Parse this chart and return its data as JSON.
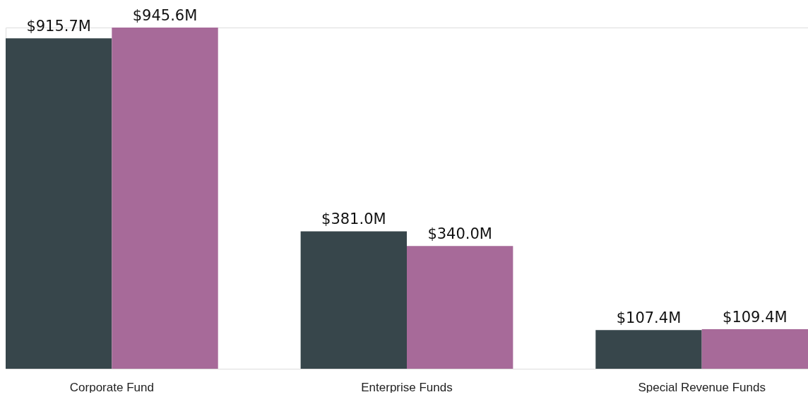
{
  "chart_data": {
    "type": "bar",
    "categories": [
      "Corporate Fund",
      "Enterprise Funds",
      "Special Revenue Funds"
    ],
    "series": [
      {
        "color": "#37464b",
        "values": [
          915.7,
          381.0,
          107.4
        ],
        "value_labels": [
          "$915.7M",
          "$381.0M",
          "$107.4M"
        ]
      },
      {
        "color": "#a76a99",
        "values": [
          945.6,
          340.0,
          109.4
        ],
        "value_labels": [
          "$945.6M",
          "$340.0M",
          "$109.4M"
        ]
      }
    ],
    "grid": false,
    "legend": false
  }
}
